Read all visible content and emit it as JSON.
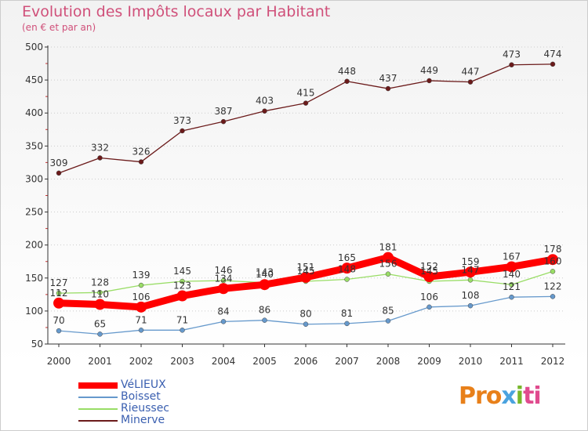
{
  "header": {
    "title": "Evolution des Impôts locaux par Habitant",
    "subtitle": "(en € et par an)"
  },
  "logo": {
    "text": "Proxiti",
    "parts": [
      "Pro",
      "x",
      "i",
      "ti"
    ]
  },
  "colors": {
    "title": "#d0507a",
    "grid": "#cccccc",
    "axis": "#333333"
  },
  "chart_data": {
    "type": "line",
    "title": "Evolution des Impôts locaux par Habitant",
    "subtitle": "(en € et par an)",
    "xlabel": "",
    "ylabel": "",
    "x": [
      "2000",
      "2001",
      "2002",
      "2003",
      "2004",
      "2005",
      "2006",
      "2007",
      "2008",
      "2009",
      "2010",
      "2011",
      "2012"
    ],
    "ylim": [
      50,
      500
    ],
    "yticks": [
      50,
      100,
      150,
      200,
      250,
      300,
      350,
      400,
      450,
      500
    ],
    "grid": "horizontal dashed",
    "legend_position": "bottom-left",
    "series": [
      {
        "name": "VéLIEUX",
        "color": "#ff0000",
        "emphasis": true,
        "values": [
          112,
          110,
          106,
          123,
          134,
          140,
          151,
          165,
          181,
          152,
          159,
          167,
          178
        ],
        "labels": [
          "112",
          "110",
          "106",
          "123",
          "134",
          "140",
          "151",
          "165",
          "181",
          "152",
          "159",
          "167",
          "178"
        ]
      },
      {
        "name": "Boisset",
        "color": "#6699cc",
        "emphasis": false,
        "values": [
          70,
          65,
          71,
          71,
          84,
          86,
          80,
          81,
          85,
          106,
          108,
          121,
          122
        ],
        "labels": [
          "70",
          "65",
          "71",
          "71",
          "84",
          "86",
          "80",
          "81",
          "85",
          "106",
          "108",
          "121",
          "122"
        ]
      },
      {
        "name": "Rieussec",
        "color": "#99dd66",
        "emphasis": false,
        "values": [
          127,
          128,
          139,
          145,
          146,
          143,
          145,
          148,
          156,
          145,
          147,
          140,
          160
        ],
        "labels": [
          "127",
          "128",
          "139",
          "145",
          "146",
          "143",
          "145",
          "148",
          "156",
          "145",
          "147",
          "140",
          "160"
        ]
      },
      {
        "name": "Minerve",
        "color": "#6b1a1a",
        "emphasis": false,
        "values": [
          309,
          332,
          326,
          373,
          387,
          403,
          415,
          448,
          437,
          449,
          447,
          473,
          474
        ],
        "labels": [
          "309",
          "332",
          "326",
          "373",
          "387",
          "403",
          "415",
          "448",
          "437",
          "449",
          "447",
          "473",
          "474"
        ]
      }
    ]
  }
}
